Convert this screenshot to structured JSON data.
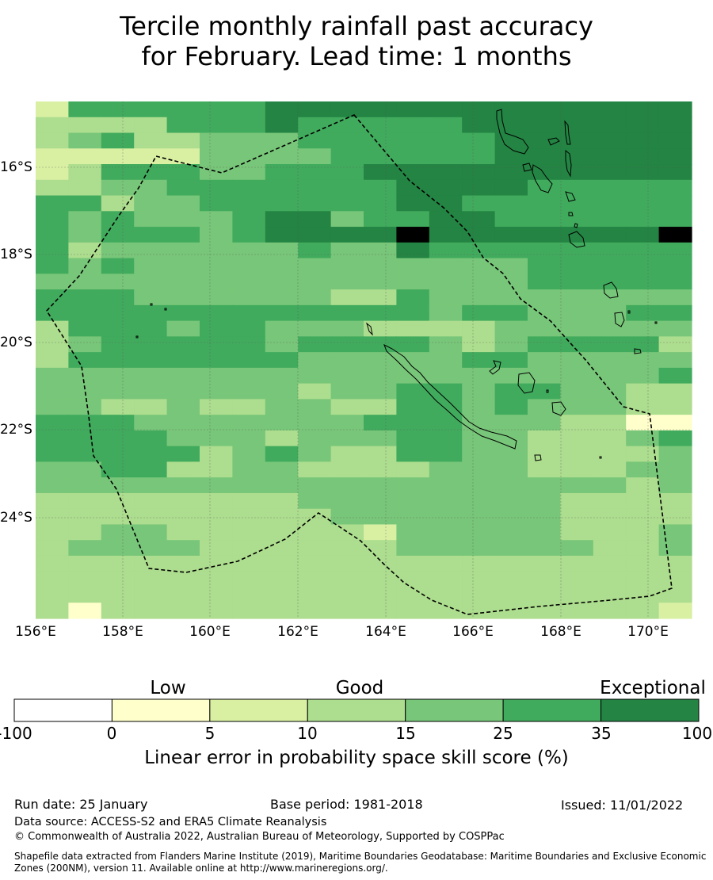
{
  "title_line1": "Tercile monthly rainfall past accuracy",
  "title_line2": "for February. Lead time: 1 months",
  "map": {
    "lon_min": 156,
    "lon_max": 171,
    "lat_top": -14.3,
    "lat_bottom": -26.1,
    "lon_labels": [
      "156°E",
      "158°E",
      "160°E",
      "162°E",
      "164°E",
      "166°E",
      "168°E",
      "170°E"
    ],
    "lat_labels": [
      "16°S",
      "18°S",
      "20°S",
      "22°S",
      "24°S"
    ],
    "grid": [
      "25555556666666666666",
      "33335556555556666666",
      "34533444555555666666",
      "22222444455555666666",
      "23555445556666666666",
      "33445555555666655555",
      "55344555555665555555",
      "54544456645566555555",
      "54555456666766666667",
      "53444444544655555555",
      "54544444444444455555",
      "44444444444444455555",
      "55544444433544444444",
      "55555555555545544455",
      "35554554443333444444",
      "34555554555543455553",
      "35555555444445544444",
      "44444444444444444445",
      "44444444344554554433",
      "44334334433554544433",
      "55544444445554443311",
      "55554443444554433345",
      "55555345433554433334",
      "44553344333344433344",
      "44444444444444444434",
      "33333333444444443333",
      "33333333344444443333",
      "33443333332444443334",
      "34444333333444444334",
      "33333333333333333333",
      "33333333333333333333",
      "33333333333333333333",
      "31333333333333333332"
    ]
  },
  "colorbar": {
    "categories": [
      "Low",
      "Good",
      "Exceptional"
    ],
    "ticks": [
      "-100",
      "0",
      "5",
      "10",
      "15",
      "25",
      "35",
      "100"
    ],
    "colors": [
      "#ffffff",
      "#ffffcc",
      "#d9f0a3",
      "#addd8e",
      "#78c679",
      "#41ab5d",
      "#238443"
    ],
    "label": "Linear error in probability space skill score (%)"
  },
  "footer": {
    "run_date": "Run date: 25 January",
    "base_period": "Base period: 1981-2018",
    "issued": "Issued: 11/01/2022",
    "data_source": "Data source: ACCESS-S2 and ERA5 Climate Reanalysis",
    "copyright": "© Commonwealth of Australia 2022, Australian Bureau of Meteorology, Supported by COSPPac",
    "shapefile_line1": "Shapefile data extracted from Flanders Marine Institute (2019), Maritime Boundaries Geodatabase: Maritime Boundaries and Exclusive Economic",
    "shapefile_line2": "Zones (200NM), version 11. Available online at http://www.marineregions.org/."
  }
}
